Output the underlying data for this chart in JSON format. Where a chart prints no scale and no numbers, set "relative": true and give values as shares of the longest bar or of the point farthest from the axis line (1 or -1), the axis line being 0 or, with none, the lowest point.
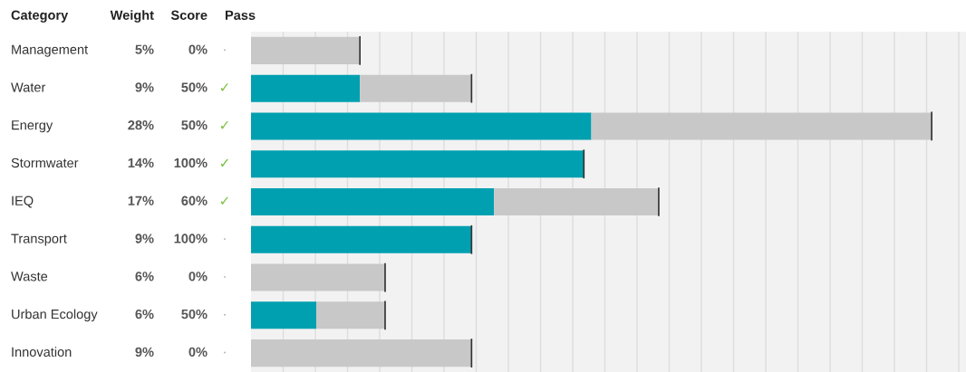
{
  "chart_data": {
    "type": "bar",
    "orientation": "horizontal",
    "stacked": true,
    "relative": true,
    "grid": "x",
    "categories": [
      "Management",
      "Water",
      "Energy",
      "Stormwater",
      "IEQ",
      "Transport",
      "Waste",
      "Urban Ecology",
      "Innovation"
    ],
    "series": [
      {
        "color": "#00a0b0",
        "values": [
          0,
          0.16,
          0.5,
          0.489,
          0.357,
          0.324,
          0,
          0.096,
          0
        ]
      },
      {
        "color": "#c8c8c8",
        "values": [
          0.16,
          0.164,
          0.5,
          0,
          0.242,
          0,
          0.197,
          0.101,
          0.324
        ]
      }
    ],
    "annotations": [
      "Category",
      "Weight",
      "Score",
      "Pass",
      "5%",
      "9%",
      "28%",
      "14%",
      "17%",
      "9%",
      "6%",
      "6%",
      "9%",
      "0%",
      "50%",
      "50%",
      "100%",
      "60%",
      "100%",
      "0%",
      "50%",
      "0%",
      "•",
      "✓",
      "✓",
      "✓",
      "✓",
      "•",
      "•",
      "•",
      "•"
    ]
  }
}
